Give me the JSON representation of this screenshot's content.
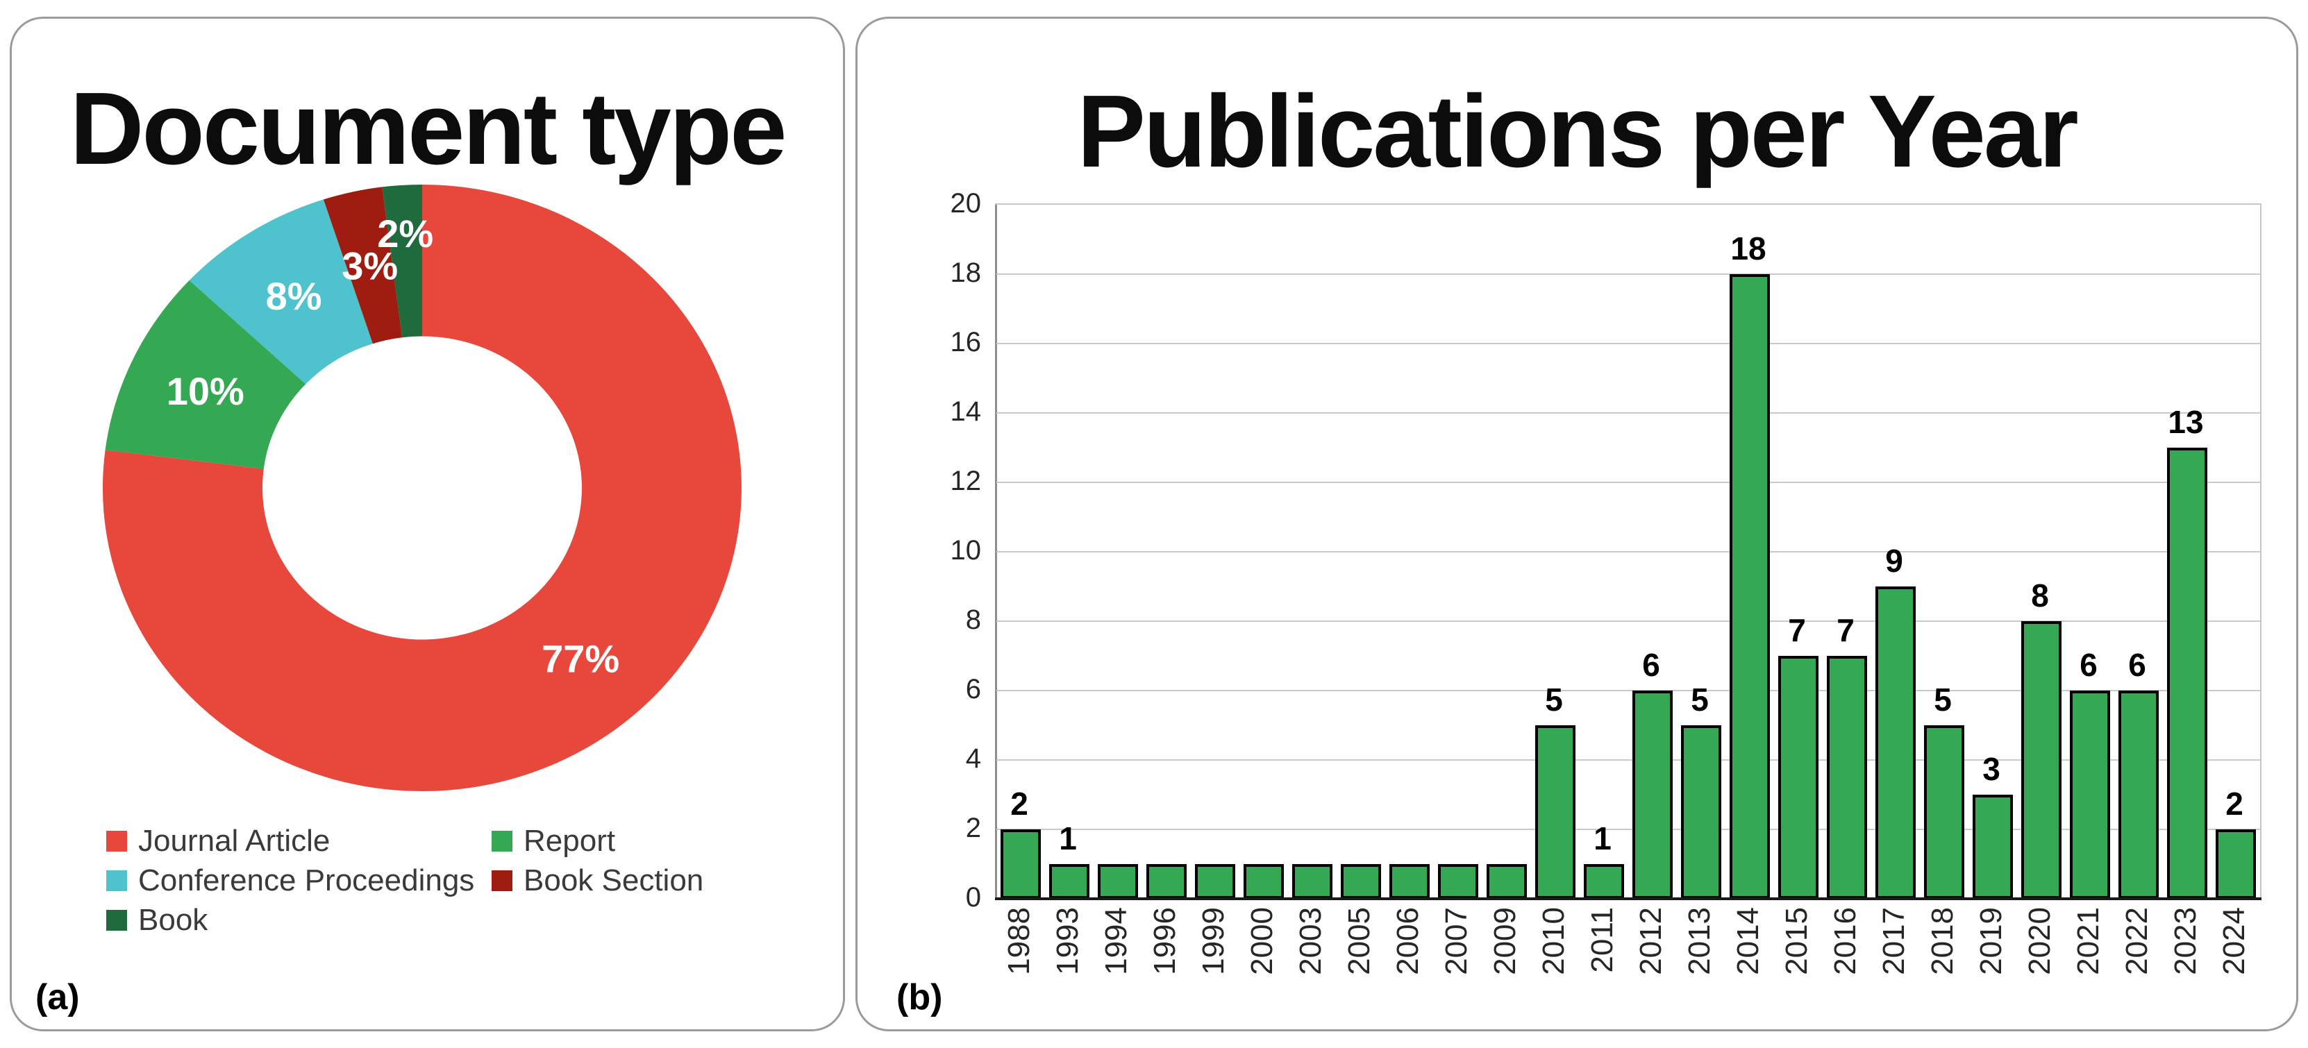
{
  "page": {
    "background": "#ffffff"
  },
  "panels": {
    "a": {
      "corner_label": "(a)",
      "legend_items": [
        {
          "label": "Journal Article",
          "color": "#e8473b"
        },
        {
          "label": "Conference Proceedings",
          "color": "#4fc3cd"
        },
        {
          "label": "Book",
          "color": "#1f6b3d"
        },
        {
          "label": "Report",
          "color": "#34a853"
        },
        {
          "label": "Book Section",
          "color": "#9f1d10"
        }
      ]
    },
    "b": {
      "corner_label": "(b)"
    }
  },
  "colors": {
    "panel_border": "#9b9b9b",
    "grid": "#c9c9c9",
    "y_axis": "#8f8f8f",
    "x_axis": "#1a1a1a",
    "bar_fill": "#34a853",
    "bar_border": "#000000",
    "percent_label_text": "#ffffff",
    "title_text": "#0c0c0c"
  },
  "chart_data": [
    {
      "type": "pie",
      "variant": "donut",
      "title": "Document type",
      "labels": [
        "Journal Article",
        "Report",
        "Conference Proceedings",
        "Book Section",
        "Book"
      ],
      "values": [
        77,
        10,
        8,
        3,
        2
      ],
      "percent_labels": [
        "77%",
        "10%",
        "8%",
        "3%",
        "2%"
      ],
      "colors": [
        "#e8473b",
        "#34a853",
        "#4fc3cd",
        "#9f1d10",
        "#1f6b3d"
      ],
      "label_radius": [
        0.75,
        0.75,
        0.75,
        0.75,
        0.84
      ],
      "start_angle_deg": 0,
      "direction": "clockwise",
      "inner_radius_ratio": 0.5,
      "legend_position": "bottom"
    },
    {
      "type": "bar",
      "title": "Publications per Year",
      "categories": [
        "1988",
        "1993",
        "1994",
        "1996",
        "1999",
        "2000",
        "2003",
        "2005",
        "2006",
        "2007",
        "2009",
        "2010",
        "2011",
        "2012",
        "2013",
        "2014",
        "2015",
        "2016",
        "2017",
        "2018",
        "2019",
        "2020",
        "2021",
        "2022",
        "2023",
        "2024"
      ],
      "values": [
        2,
        1,
        1,
        1,
        1,
        1,
        1,
        1,
        1,
        1,
        1,
        5,
        1,
        6,
        5,
        18,
        7,
        7,
        9,
        5,
        3,
        8,
        6,
        6,
        13,
        2
      ],
      "show_value_label": [
        true,
        true,
        false,
        false,
        false,
        false,
        false,
        false,
        false,
        false,
        false,
        true,
        true,
        true,
        true,
        true,
        true,
        true,
        true,
        true,
        true,
        true,
        true,
        true,
        true,
        true
      ],
      "xlabel": "",
      "ylabel": "",
      "ylim": [
        0,
        20
      ],
      "ytick_step": 2,
      "yticks": [
        0,
        2,
        4,
        6,
        8,
        10,
        12,
        14,
        16,
        18,
        20
      ],
      "grid": "horizontal",
      "legend_position": "none"
    }
  ]
}
